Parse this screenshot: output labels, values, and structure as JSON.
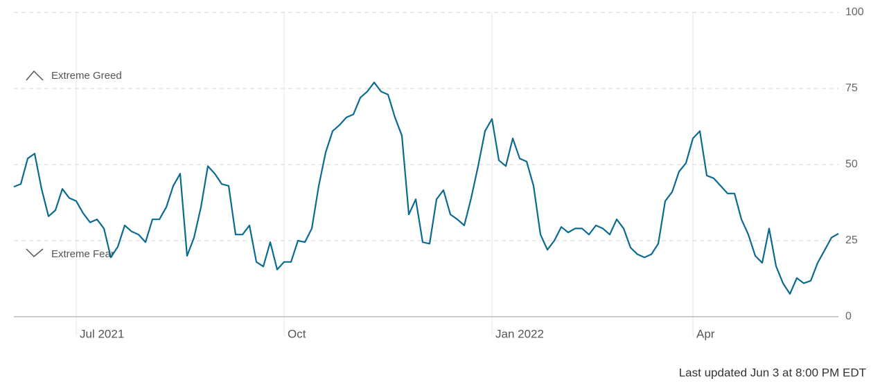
{
  "chart_data": {
    "type": "line",
    "categories": [
      null,
      null,
      null,
      null,
      null,
      null,
      null,
      null,
      null,
      "Jul 2021",
      null,
      null,
      null,
      null,
      null,
      null,
      null,
      null,
      null,
      null,
      null,
      null,
      null,
      null,
      null,
      null,
      null,
      null,
      null,
      null,
      null,
      null,
      null,
      null,
      null,
      null,
      null,
      null,
      null,
      "Oct",
      null,
      null,
      null,
      null,
      null,
      null,
      null,
      null,
      null,
      null,
      null,
      null,
      null,
      null,
      null,
      null,
      null,
      null,
      null,
      null,
      null,
      null,
      null,
      null,
      null,
      null,
      null,
      null,
      null,
      "Jan 2022",
      null,
      null,
      null,
      null,
      null,
      null,
      null,
      null,
      null,
      null,
      null,
      null,
      null,
      null,
      null,
      null,
      null,
      null,
      null,
      null,
      null,
      null,
      null,
      null,
      null,
      null,
      null,
      null,
      "Apr",
      null,
      null,
      null,
      null,
      null,
      null,
      null,
      null,
      null,
      null,
      null,
      null,
      null,
      null,
      null,
      null,
      null,
      null,
      null,
      null,
      null
    ],
    "series": [
      {
        "color": "#0b6a8f",
        "values": [
          42.7,
          43.6,
          52,
          53.6,
          42,
          33,
          35,
          42,
          39,
          38,
          34,
          31,
          32,
          29,
          19.5,
          23,
          30,
          28,
          27,
          24.5,
          32,
          32,
          36,
          43,
          47,
          20,
          26,
          36,
          49.5,
          47,
          43.6,
          43,
          27,
          27,
          30,
          18,
          16.5,
          24.5,
          15.5,
          18,
          18,
          25,
          24.5,
          29,
          43,
          54,
          61,
          63,
          65.5,
          66.5,
          72,
          74,
          77,
          74,
          73,
          65.5,
          59.5,
          33.6,
          38.6,
          24.5,
          24,
          38.6,
          41.6,
          33.6,
          32,
          30,
          39,
          49.5,
          61,
          65,
          51.4,
          49.5,
          58.6,
          52,
          51,
          43,
          27,
          22,
          25,
          29.5,
          27.7,
          29,
          29,
          27,
          30,
          29,
          27,
          32,
          29,
          22.7,
          20.5,
          19.5,
          20.5,
          24,
          38,
          41,
          47.7,
          50.5,
          58.6,
          61,
          46.4,
          45.5,
          43,
          40.5,
          40.5,
          32,
          27,
          20,
          17.7,
          29,
          16.6,
          11,
          7.5,
          12.7,
          11,
          11.8,
          17.7,
          21.8,
          26,
          27.3
        ]
      }
    ],
    "ylim": [
      0,
      100
    ],
    "yticks": [
      0,
      25,
      50,
      75,
      100
    ],
    "grid": true,
    "annotations": [
      "Extreme Greed",
      "Extreme Fear"
    ],
    "footer": "Last updated Jun 3 at 8:00 PM EDT"
  }
}
